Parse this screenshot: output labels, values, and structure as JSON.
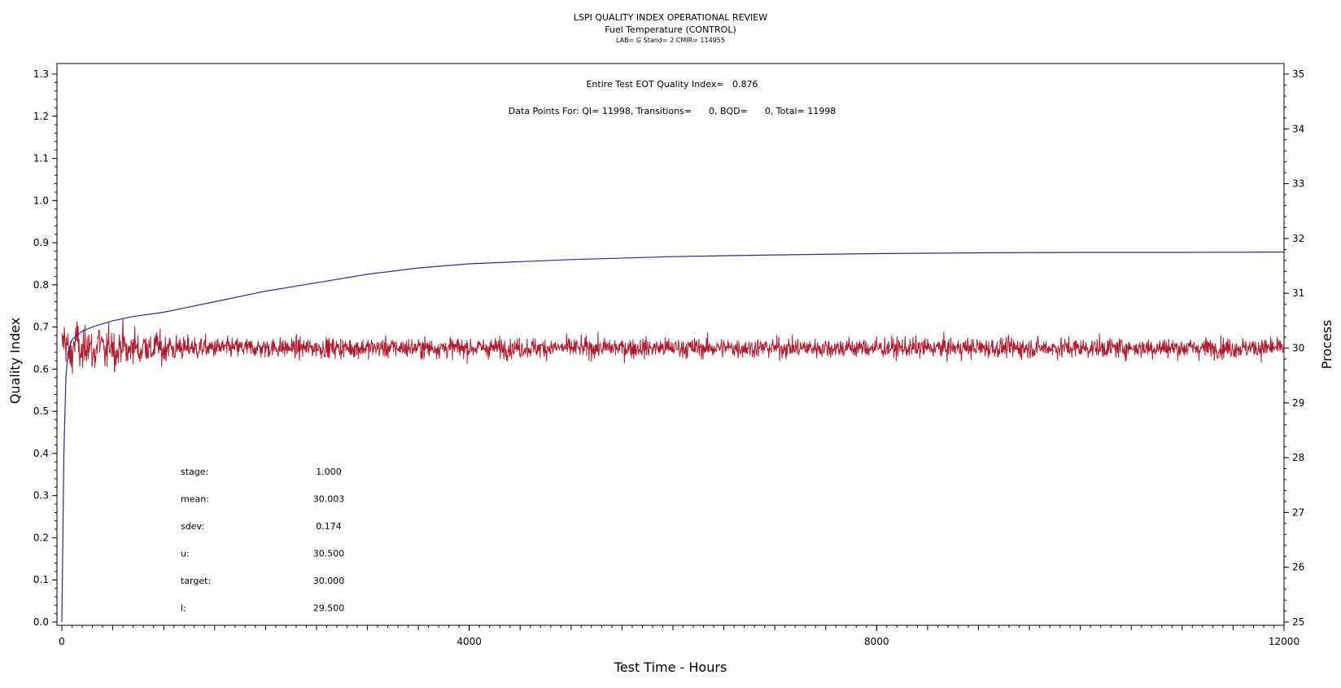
{
  "chart_data": {
    "type": "line",
    "title": "LSPI QUALITY INDEX OPERATIONAL REVIEW",
    "subtitle": "Fuel Temperature (CONTROL)",
    "subsubtitle": "LAB= G Stand= 2 CMIR= 114955",
    "xlabel": "Test Time - Hours",
    "ylabel_left": "Quality Index",
    "ylabel_right": "Process",
    "xlim": [
      0,
      12000
    ],
    "ylim_left": [
      0,
      1.3
    ],
    "ylim_right": [
      25,
      35
    ],
    "x_ticks": [
      "0",
      "4000",
      "8000",
      "12000"
    ],
    "y_left_ticks": [
      "0.0",
      "0.1",
      "0.2",
      "0.3",
      "0.4",
      "0.5",
      "0.6",
      "0.7",
      "0.8",
      "0.9",
      "1.0",
      "1.1",
      "1.2",
      "1.3"
    ],
    "y_right_ticks": [
      "25",
      "26",
      "27",
      "28",
      "29",
      "30",
      "31",
      "32",
      "33",
      "34",
      "35"
    ],
    "annotations": {
      "quality_index_text": "Entire Test EOT Quality Index=   0.876",
      "data_points_text": "Data Points For: QI= 11998, Transitions=      0, BQD=      0, Total= 11998"
    },
    "stats": [
      {
        "label": "stage:",
        "value": "1.000"
      },
      {
        "label": "mean:",
        "value": "30.003"
      },
      {
        "label": "sdev:",
        "value": "0.174"
      },
      {
        "label": "u:",
        "value": "30.500"
      },
      {
        "label": "target:",
        "value": "30.000"
      },
      {
        "label": "l:",
        "value": "29.500"
      }
    ],
    "series": [
      {
        "name": "Quality Index",
        "axis": "left",
        "color": "#2a2a9a",
        "x": [
          0,
          20,
          40,
          60,
          100,
          200,
          300,
          500,
          700,
          1000,
          1500,
          2000,
          2500,
          3000,
          3500,
          4000,
          5000,
          6000,
          7000,
          8000,
          9000,
          10000,
          11000,
          12000
        ],
        "y": [
          0.0,
          0.4,
          0.58,
          0.64,
          0.67,
          0.69,
          0.7,
          0.715,
          0.725,
          0.735,
          0.76,
          0.785,
          0.805,
          0.825,
          0.84,
          0.85,
          0.86,
          0.867,
          0.871,
          0.874,
          0.876,
          0.877,
          0.877,
          0.878
        ]
      },
      {
        "name": "Process",
        "axis": "right",
        "color": "#b01c2e",
        "x_range": [
          0,
          12000
        ],
        "mean": 30.003,
        "sdev": 0.174,
        "min": 29.3,
        "max": 30.7
      }
    ]
  }
}
